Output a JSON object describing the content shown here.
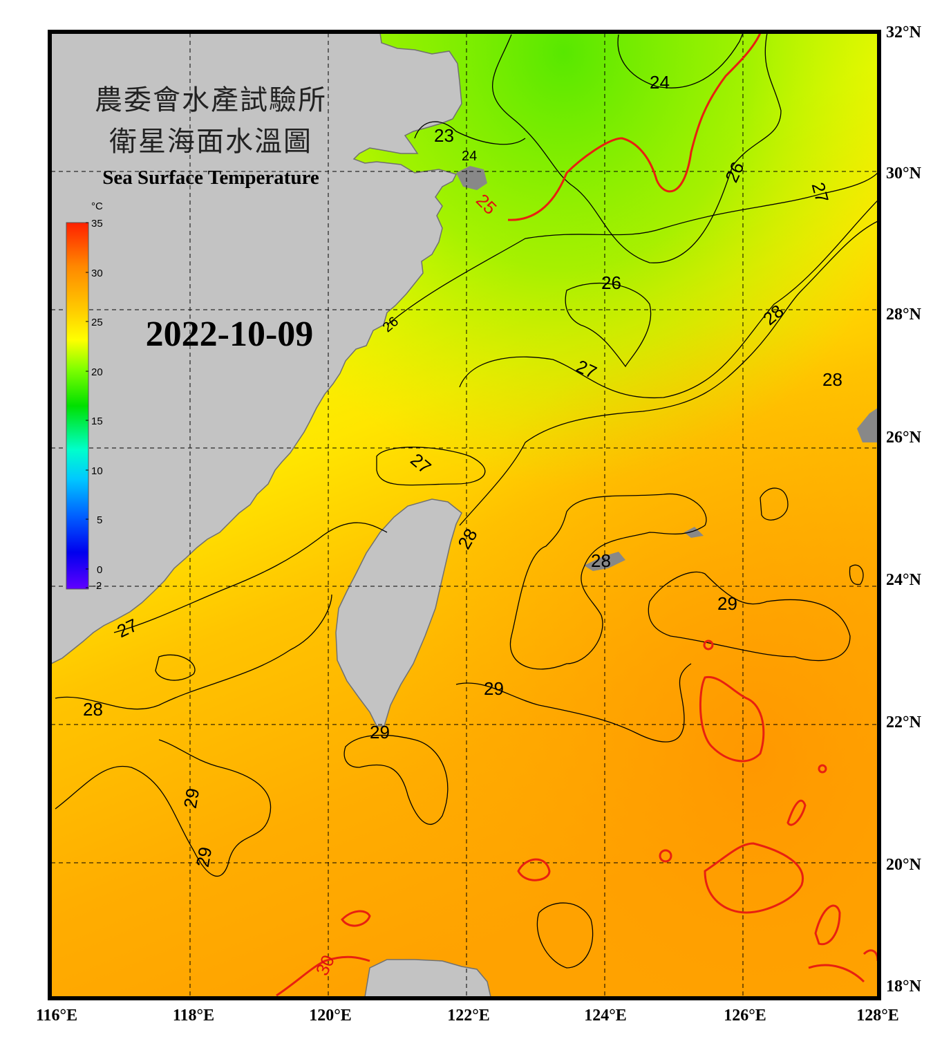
{
  "title_zh_line1": "農委會水產試驗所",
  "title_zh_line2": "衛星海面水溫圖",
  "title_en": "Sea Surface Temperature",
  "date": "2022-10-09",
  "colorbar": {
    "unit": "°C",
    "ticks": [
      "35",
      "30",
      "25",
      "20",
      "15",
      "10",
      "5",
      "0",
      "-2"
    ],
    "colors": [
      "#ff2000",
      "#ff8800",
      "#ffcc00",
      "#ffff00",
      "#80ff00",
      "#00e000",
      "#00ffcc",
      "#00c8ff",
      "#0060ff",
      "#0000ee",
      "#6000ff"
    ]
  },
  "lat_labels": [
    "32°N",
    "30°N",
    "28°N",
    "26°N",
    "24°N",
    "22°N",
    "20°N",
    "18°N"
  ],
  "lon_labels": [
    "116°E",
    "118°E",
    "120°E",
    "122°E",
    "124°E",
    "126°E",
    "128°E"
  ],
  "contour_labels": [
    "24",
    "23",
    "24",
    "25",
    "26",
    "27",
    "26",
    "28",
    "27",
    "28",
    "26",
    "27",
    "27",
    "28",
    "28",
    "29",
    "28",
    "28",
    "29",
    "29",
    "29",
    "29",
    "30"
  ],
  "colors": {
    "land": "#c3c3c3",
    "frame": "#000000",
    "hot_contour": "#e82010",
    "contour": "#000000"
  }
}
